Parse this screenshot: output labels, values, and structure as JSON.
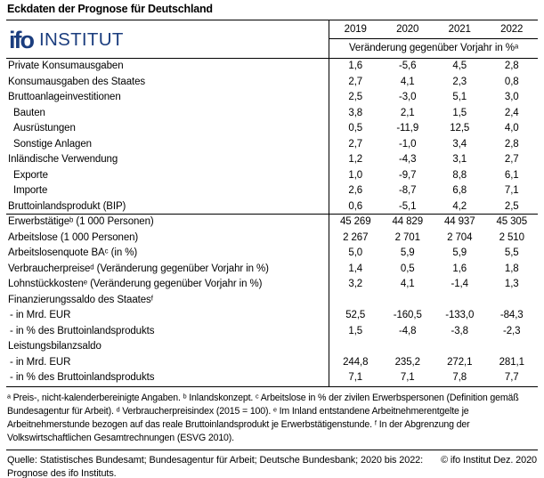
{
  "title": "Eckdaten der Prognose für Deutschland",
  "logo": {
    "mark": "ifo",
    "name": "INSTITUT",
    "color": "#1b3d7e"
  },
  "table": {
    "year_headers": [
      "2019",
      "2020",
      "2021",
      "2022"
    ],
    "subheader": "Veränderung gegenüber Vorjahr in %ᵃ",
    "rows": [
      {
        "label": "Private Konsumausgaben",
        "values": [
          "1,6",
          "-5,6",
          "4,5",
          "2,8"
        ]
      },
      {
        "label": "Konsumausgaben des Staates",
        "values": [
          "2,7",
          "4,1",
          "2,3",
          "0,8"
        ]
      },
      {
        "label": "Bruttoanlageinvestitionen",
        "values": [
          "2,5",
          "-3,0",
          "5,1",
          "3,0"
        ]
      },
      {
        "label": "Bauten",
        "values": [
          "3,8",
          "2,1",
          "1,5",
          "2,4"
        ]
      },
      {
        "label": "Ausrüstungen",
        "values": [
          "0,5",
          "-11,9",
          "12,5",
          "4,0"
        ]
      },
      {
        "label": "Sonstige Anlagen",
        "values": [
          "2,7",
          "-1,0",
          "3,4",
          "2,8"
        ]
      },
      {
        "label": "Inländische Verwendung",
        "values": [
          "1,2",
          "-4,3",
          "3,1",
          "2,7"
        ]
      },
      {
        "label": "Exporte",
        "values": [
          "1,0",
          "-9,7",
          "8,8",
          "6,1"
        ]
      },
      {
        "label": "Importe",
        "values": [
          "2,6",
          "-8,7",
          "6,8",
          "7,1"
        ]
      },
      {
        "label": "Bruttoinlandsprodukt (BIP)",
        "values": [
          "0,6",
          "-5,1",
          "4,2",
          "2,5"
        ]
      },
      {
        "label": "Erwerbstätigeᵇ (1 000 Personen)",
        "values": [
          "45 269",
          "44 829",
          "44 937",
          "45 305"
        ]
      },
      {
        "label": "Arbeitslose (1 000 Personen)",
        "values": [
          "2 267",
          "2 701",
          "2 704",
          "2 510"
        ]
      },
      {
        "label": "Arbeitslosenquote BAᶜ (in %)",
        "values": [
          "5,0",
          "5,9",
          "5,9",
          "5,5"
        ]
      },
      {
        "label": "Verbraucherpreiseᵈ (Veränderung gegenüber Vorjahr in %)",
        "values": [
          "1,4",
          "0,5",
          "1,6",
          "1,8"
        ]
      },
      {
        "label": "Lohnstückkostenᵉ (Veränderung gegenüber Vorjahr in %)",
        "values": [
          "3,2",
          "4,1",
          "-1,4",
          "1,3"
        ]
      },
      {
        "label": "Finanzierungssaldo des Staatesᶠ",
        "values": [
          "",
          "",
          "",
          ""
        ]
      },
      {
        "label": "- in Mrd. EUR",
        "values": [
          "52,5",
          "-160,5",
          "-133,0",
          "-84,3"
        ]
      },
      {
        "label": "- in % des Bruttoinlandsprodukts",
        "values": [
          "1,5",
          "-4,8",
          "-3,8",
          "-2,3"
        ]
      },
      {
        "label": "Leistungsbilanzsaldo",
        "values": [
          "",
          "",
          "",
          ""
        ]
      },
      {
        "label": "- in Mrd. EUR",
        "values": [
          "244,8",
          "235,2",
          "272,1",
          "281,1"
        ]
      },
      {
        "label": "- in % des Bruttoinlandsprodukts",
        "values": [
          "7,1",
          "7,1",
          "7,8",
          "7,7"
        ]
      }
    ]
  },
  "footnotes": "ᵃ Preis-, nicht-kalenderbereinigte Angaben. ᵇ Inlandskonzept. ᶜ Arbeitslose in % der zivilen Erwerbspersonen (Definition gemäß Bundesagentur für Arbeit). ᵈ Verbraucherpreisindex (2015 = 100). ᵉ Im Inland entstandene Arbeitnehmerentgelte je Arbeitnehmerstunde bezogen auf das reale Bruttoinlandsprodukt je Erwerbstätigenstunde. ᶠ In der Abgrenzung der Volkswirtschaftlichen Gesamtrechnungen (ESVG 2010).",
  "footer": {
    "source": "Quelle: Statistisches Bundesamt; Bundesagentur für Arbeit; Deutsche Bundesbank; 2020 bis 2022: Prognose des ifo Instituts.",
    "copyright": "© ifo Institut Dez. 2020"
  }
}
